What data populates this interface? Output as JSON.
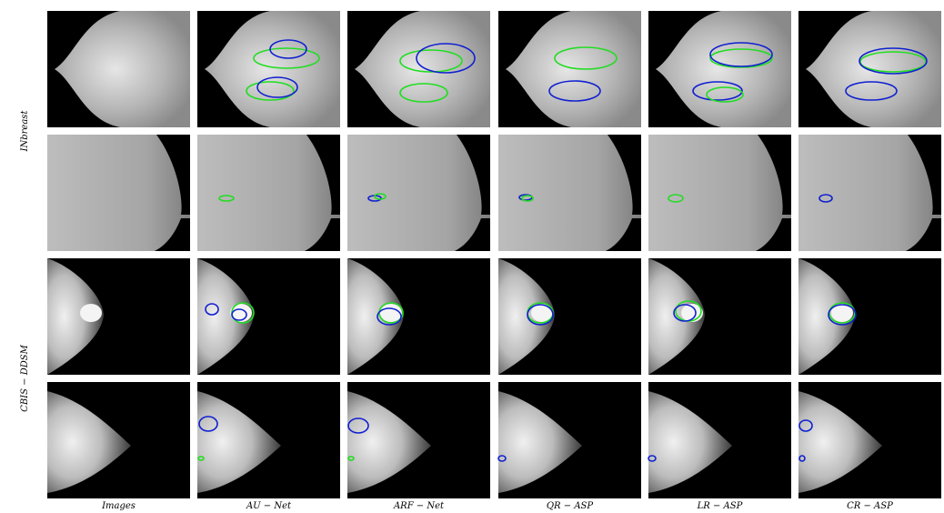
{
  "columns": [
    "Images",
    "AU − Net",
    "ARF − Net",
    "QR − ASP",
    "LR − ASP",
    "CR − ASP"
  ],
  "row_groups": [
    "INbreast",
    "CBIS − DDSM"
  ]
}
